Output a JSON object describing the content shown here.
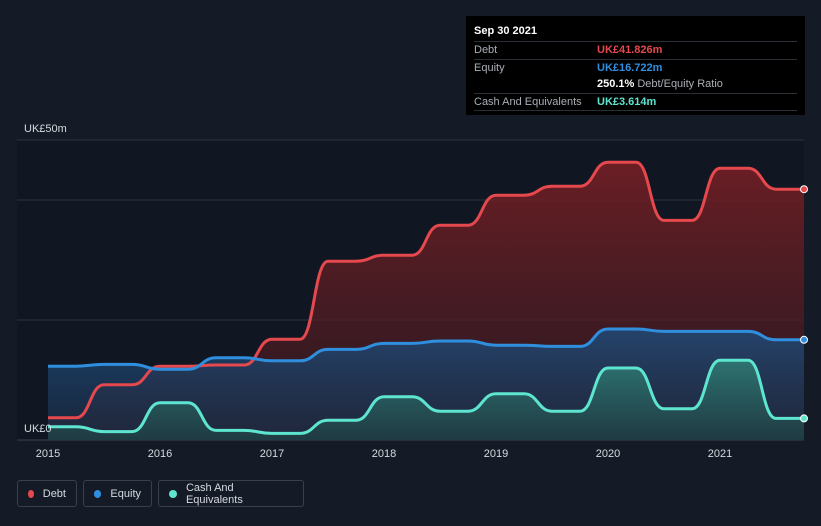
{
  "tooltip": {
    "date": "Sep 30 2021",
    "debt_label": "Debt",
    "debt_value": "UK£41.826m",
    "equity_label": "Equity",
    "equity_value": "UK£16.722m",
    "ratio_value": "250.1%",
    "ratio_label": "Debt/Equity Ratio",
    "cash_label": "Cash And Equivalents",
    "cash_value": "UK£3.614m"
  },
  "legend": [
    {
      "name": "Debt",
      "color": "#e5484d"
    },
    {
      "name": "Equity",
      "color": "#2f8fde"
    },
    {
      "name": "Cash And Equivalents",
      "color": "#5ee5d0"
    }
  ],
  "chart_data": {
    "type": "area",
    "y_top_label": "UK£50m",
    "y_bottom_label": "UK£0",
    "ylim": [
      0,
      50
    ],
    "xlim": [
      2015.0,
      2021.75
    ],
    "x_ticks": [
      "2015",
      "2016",
      "2017",
      "2018",
      "2019",
      "2020",
      "2021"
    ],
    "grid": true,
    "series": [
      {
        "name": "Debt",
        "color": "#e5484d",
        "points": [
          [
            2015.0,
            3.7
          ],
          [
            2015.25,
            3.7
          ],
          [
            2015.5,
            9.2
          ],
          [
            2015.75,
            9.2
          ],
          [
            2016.0,
            12.3
          ],
          [
            2016.25,
            12.3
          ],
          [
            2016.5,
            12.5
          ],
          [
            2016.75,
            12.5
          ],
          [
            2017.0,
            16.8
          ],
          [
            2017.25,
            16.8
          ],
          [
            2017.5,
            29.8
          ],
          [
            2017.75,
            29.8
          ],
          [
            2018.0,
            30.8
          ],
          [
            2018.25,
            30.8
          ],
          [
            2018.5,
            35.8
          ],
          [
            2018.75,
            35.8
          ],
          [
            2019.0,
            40.8
          ],
          [
            2019.25,
            40.8
          ],
          [
            2019.5,
            42.3
          ],
          [
            2019.75,
            42.3
          ],
          [
            2020.0,
            46.3
          ],
          [
            2020.25,
            46.3
          ],
          [
            2020.5,
            36.6
          ],
          [
            2020.75,
            36.6
          ],
          [
            2021.0,
            45.3
          ],
          [
            2021.25,
            45.3
          ],
          [
            2021.5,
            41.8
          ],
          [
            2021.75,
            41.8
          ]
        ]
      },
      {
        "name": "Equity",
        "color": "#2f8fde",
        "points": [
          [
            2015.0,
            12.3
          ],
          [
            2015.25,
            12.3
          ],
          [
            2015.5,
            12.6
          ],
          [
            2015.75,
            12.6
          ],
          [
            2016.0,
            11.8
          ],
          [
            2016.25,
            11.8
          ],
          [
            2016.5,
            13.7
          ],
          [
            2016.75,
            13.7
          ],
          [
            2017.0,
            13.2
          ],
          [
            2017.25,
            13.2
          ],
          [
            2017.5,
            15.1
          ],
          [
            2017.75,
            15.1
          ],
          [
            2018.0,
            16.1
          ],
          [
            2018.25,
            16.1
          ],
          [
            2018.5,
            16.5
          ],
          [
            2018.75,
            16.5
          ],
          [
            2019.0,
            15.8
          ],
          [
            2019.25,
            15.8
          ],
          [
            2019.5,
            15.6
          ],
          [
            2019.75,
            15.6
          ],
          [
            2020.0,
            18.5
          ],
          [
            2020.25,
            18.5
          ],
          [
            2020.5,
            18.1
          ],
          [
            2020.75,
            18.1
          ],
          [
            2021.0,
            18.1
          ],
          [
            2021.25,
            18.1
          ],
          [
            2021.5,
            16.7
          ],
          [
            2021.75,
            16.7
          ]
        ]
      },
      {
        "name": "Cash And Equivalents",
        "color": "#5ee5d0",
        "points": [
          [
            2015.0,
            2.2
          ],
          [
            2015.25,
            2.2
          ],
          [
            2015.5,
            1.4
          ],
          [
            2015.75,
            1.4
          ],
          [
            2016.0,
            6.2
          ],
          [
            2016.25,
            6.2
          ],
          [
            2016.5,
            1.6
          ],
          [
            2016.75,
            1.6
          ],
          [
            2017.0,
            1.1
          ],
          [
            2017.25,
            1.1
          ],
          [
            2017.5,
            3.3
          ],
          [
            2017.75,
            3.3
          ],
          [
            2018.0,
            7.2
          ],
          [
            2018.25,
            7.2
          ],
          [
            2018.5,
            4.8
          ],
          [
            2018.75,
            4.8
          ],
          [
            2019.0,
            7.7
          ],
          [
            2019.25,
            7.7
          ],
          [
            2019.5,
            4.8
          ],
          [
            2019.75,
            4.8
          ],
          [
            2020.0,
            12.0
          ],
          [
            2020.25,
            12.0
          ],
          [
            2020.5,
            5.2
          ],
          [
            2020.75,
            5.2
          ],
          [
            2021.0,
            13.3
          ],
          [
            2021.25,
            13.3
          ],
          [
            2021.5,
            3.6
          ],
          [
            2021.75,
            3.6
          ]
        ]
      }
    ]
  }
}
